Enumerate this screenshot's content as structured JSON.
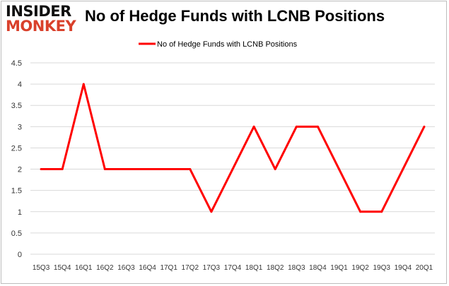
{
  "logo": {
    "line1": "INSIDER",
    "line2": "MONKEY"
  },
  "chart_data": {
    "type": "line",
    "title": "No of Hedge Funds with LCNB Positions",
    "categories": [
      "15Q3",
      "15Q4",
      "16Q1",
      "16Q2",
      "16Q3",
      "16Q4",
      "17Q1",
      "17Q2",
      "17Q3",
      "17Q4",
      "18Q1",
      "18Q2",
      "18Q3",
      "18Q4",
      "19Q1",
      "19Q2",
      "19Q3",
      "19Q4",
      "20Q1"
    ],
    "series": [
      {
        "name": "No of Hedge Funds with LCNB Positions",
        "values": [
          2,
          2,
          4,
          2,
          2,
          2,
          2,
          2,
          1,
          2,
          3,
          2,
          3,
          3,
          2,
          1,
          1,
          2,
          3
        ],
        "color": "#ff0000"
      }
    ],
    "ylim": [
      0,
      4.5
    ],
    "yticks": [
      "0",
      "0.5",
      "1",
      "1.5",
      "2",
      "2.5",
      "3",
      "3.5",
      "4",
      "4.5"
    ],
    "grid": true,
    "legend": "top-center"
  }
}
